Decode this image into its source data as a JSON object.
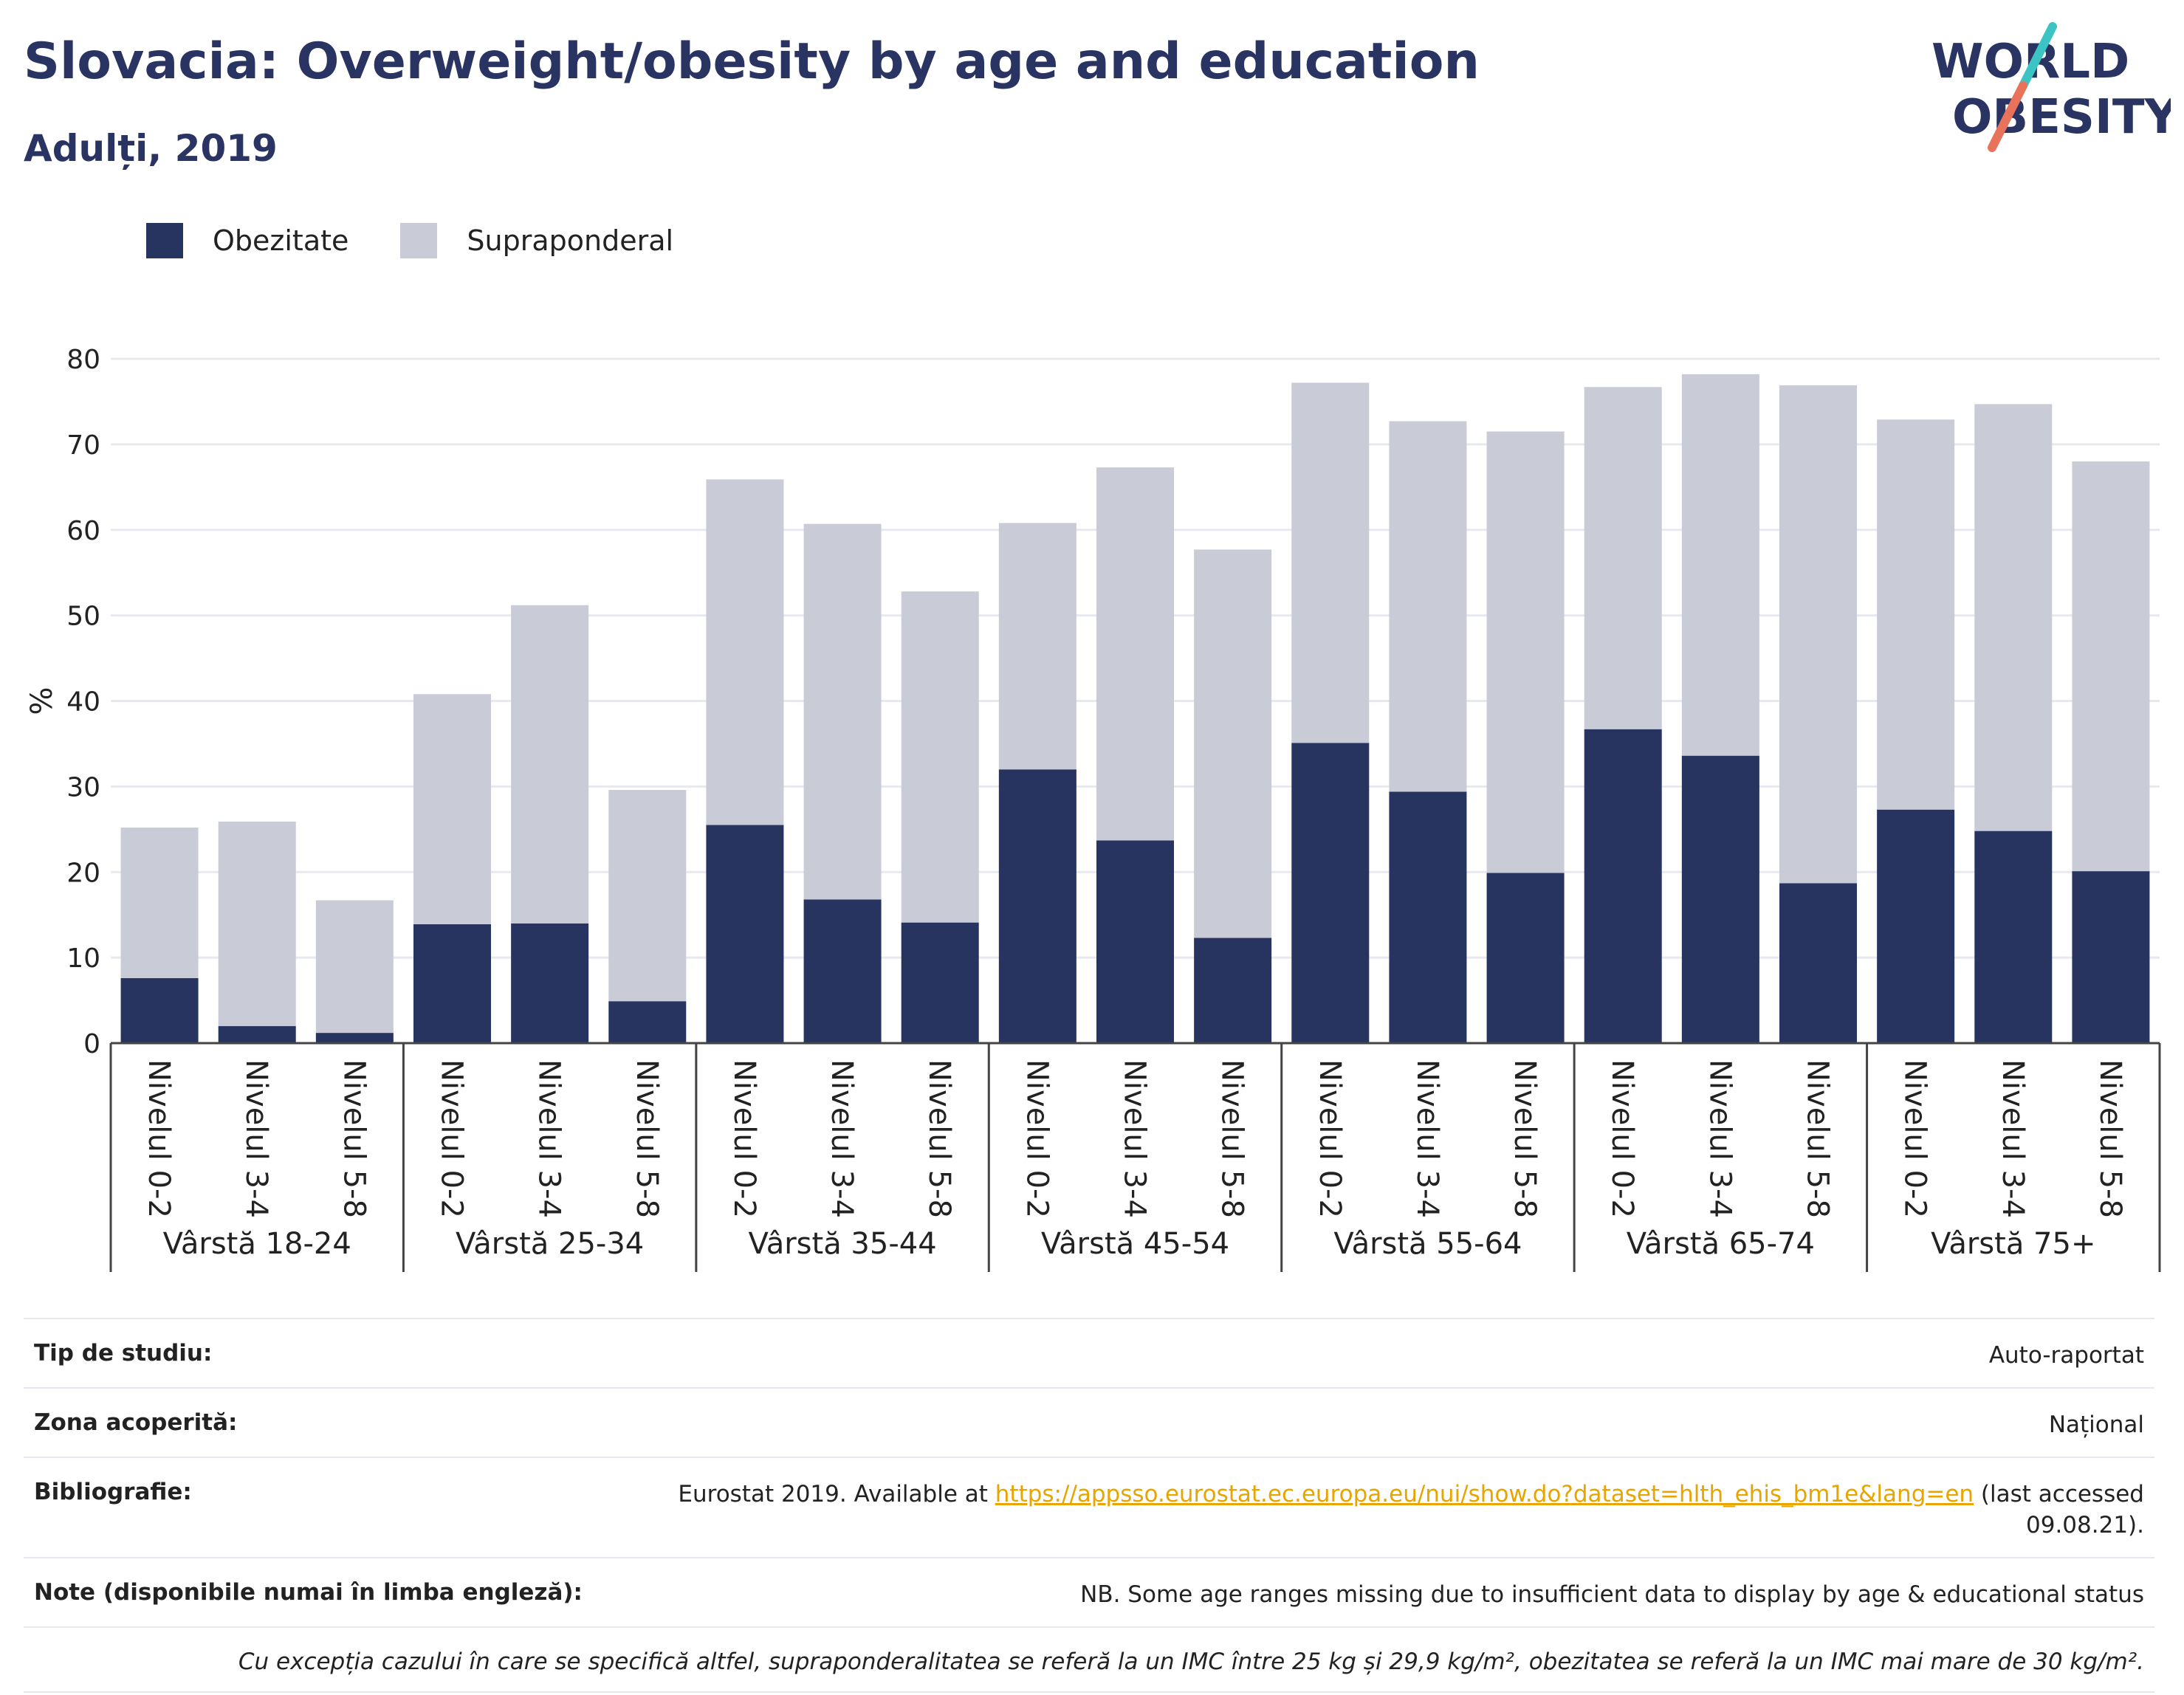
{
  "header": {
    "title": "Slovacia: Overweight/obesity by age and education",
    "subtitle": "Adulți, 2019",
    "logo_line1": "WORLD",
    "logo_line2": "OBESITY"
  },
  "legend": {
    "items": [
      {
        "label": "Obezitate",
        "color": "#283460"
      },
      {
        "label": "Supraponderal",
        "color": "#c9cbd7"
      }
    ]
  },
  "chart_data": {
    "type": "bar",
    "stacked": true,
    "ylabel": "%",
    "ylim": [
      0,
      80
    ],
    "yticks": [
      0,
      10,
      20,
      30,
      40,
      50,
      60,
      70,
      80
    ],
    "grid": true,
    "legend_position": "top-left",
    "groups": [
      {
        "label": "Vârstă 18-24",
        "categories": [
          "Nivelul 0-2",
          "Nivelul 3-4",
          "Nivelul 5-8"
        ]
      },
      {
        "label": "Vârstă 25-34",
        "categories": [
          "Nivelul 0-2",
          "Nivelul 3-4",
          "Nivelul 5-8"
        ]
      },
      {
        "label": "Vârstă 35-44",
        "categories": [
          "Nivelul 0-2",
          "Nivelul 3-4",
          "Nivelul 5-8"
        ]
      },
      {
        "label": "Vârstă 45-54",
        "categories": [
          "Nivelul 0-2",
          "Nivelul 3-4",
          "Nivelul 5-8"
        ]
      },
      {
        "label": "Vârstă 55-64",
        "categories": [
          "Nivelul 0-2",
          "Nivelul 3-4",
          "Nivelul 5-8"
        ]
      },
      {
        "label": "Vârstă 65-74",
        "categories": [
          "Nivelul 0-2",
          "Nivelul 3-4",
          "Nivelul 5-8"
        ]
      },
      {
        "label": "Vârstă 75+",
        "categories": [
          "Nivelul 0-2",
          "Nivelul 3-4",
          "Nivelul 5-8"
        ]
      }
    ],
    "series": [
      {
        "name": "Obezitate",
        "color": "#283460",
        "values": [
          7.6,
          2.0,
          1.2,
          13.9,
          14.0,
          4.9,
          25.5,
          16.8,
          14.1,
          32.0,
          23.7,
          12.3,
          35.1,
          29.4,
          19.9,
          36.7,
          33.6,
          18.7,
          27.3,
          24.8,
          20.1
        ]
      },
      {
        "name": "Supraponderal",
        "color": "#c9cbd7",
        "values": [
          17.6,
          23.9,
          15.5,
          26.9,
          37.2,
          24.7,
          40.4,
          43.9,
          38.7,
          28.8,
          43.6,
          45.4,
          42.1,
          43.3,
          51.6,
          40.0,
          44.6,
          58.2,
          45.6,
          49.9,
          47.9
        ]
      }
    ]
  },
  "meta": {
    "rows": [
      {
        "label": "Tip de studiu:",
        "value": "Auto-raportat"
      },
      {
        "label": "Zona acoperită:",
        "value": "Național"
      }
    ],
    "bibliography": {
      "label": "Bibliografie:",
      "prefix": "Eurostat 2019. Available at ",
      "link": "https://appsso.eurostat.ec.europa.eu/nui/show.do?dataset=hlth_ehis_bm1e&lang=en",
      "suffix_line1": " (last accessed",
      "suffix_line2": "09.08.21)."
    },
    "note": {
      "label": "Note (disponibile numai în limba engleză):",
      "value": "NB. Some age ranges missing due to insufficient data to display by age & educational status"
    },
    "footnote": "Cu excepția cazului în care se specifică altfel, supraponderalitatea se referă la un IMC între 25 kg și 29,9 kg/m², obezitatea se referă la un IMC mai mare de 30 kg/m²."
  }
}
